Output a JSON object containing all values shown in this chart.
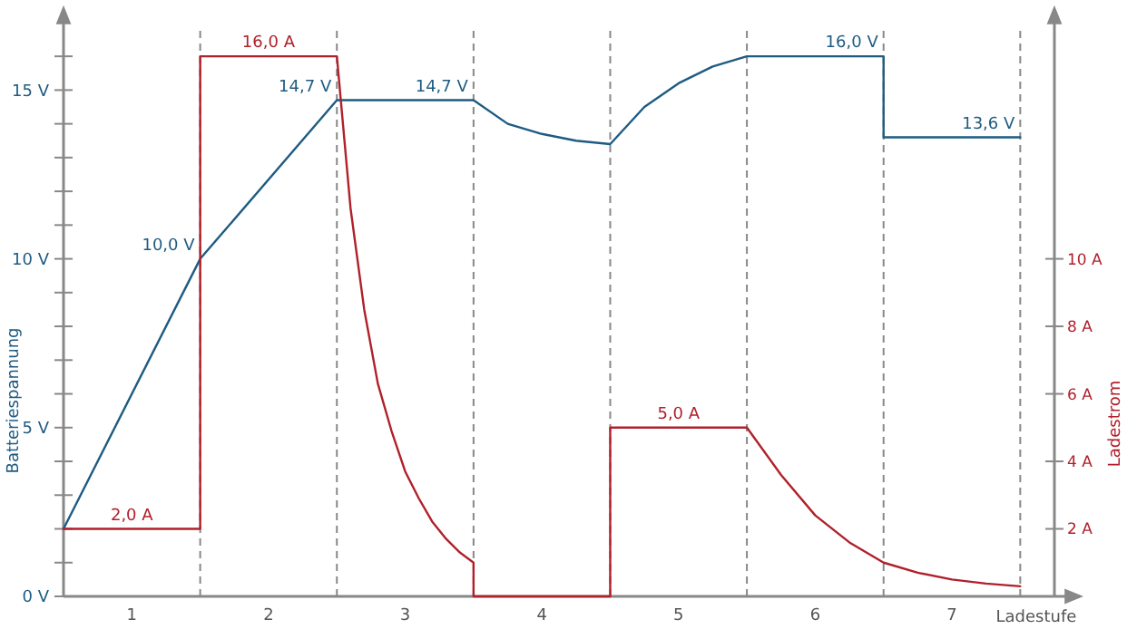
{
  "chart_data": {
    "type": "line",
    "xlabel": "Ladestufe",
    "ylabel": "Batteriespannung",
    "y2label": "Ladestrom",
    "xlim": [
      0,
      7.25
    ],
    "xticks": [
      {
        "value": 0.5,
        "label": "1"
      },
      {
        "value": 1.5,
        "label": "2"
      },
      {
        "value": 2.5,
        "label": "3"
      },
      {
        "value": 3.5,
        "label": "4"
      },
      {
        "value": 4.5,
        "label": "5"
      },
      {
        "value": 5.5,
        "label": "6"
      },
      {
        "value": 6.5,
        "label": "7"
      }
    ],
    "ylim": [
      0,
      17.4
    ],
    "yticks": [
      {
        "value": 0,
        "label": "0 V"
      },
      {
        "value": 1,
        "label": null
      },
      {
        "value": 2,
        "label": null
      },
      {
        "value": 3,
        "label": null
      },
      {
        "value": 4,
        "label": null
      },
      {
        "value": 5,
        "label": "5 V"
      },
      {
        "value": 6,
        "label": null
      },
      {
        "value": 7,
        "label": null
      },
      {
        "value": 8,
        "label": null
      },
      {
        "value": 9,
        "label": null
      },
      {
        "value": 10,
        "label": "10 V"
      },
      {
        "value": 11,
        "label": null
      },
      {
        "value": 12,
        "label": null
      },
      {
        "value": 13,
        "label": null
      },
      {
        "value": 14,
        "label": null
      },
      {
        "value": 15,
        "label": "15 V"
      },
      {
        "value": 16,
        "label": null
      }
    ],
    "y2lim": [
      0,
      17.4
    ],
    "y2ticks": [
      {
        "value": 2,
        "label": "2 A"
      },
      {
        "value": 4,
        "label": "4 A"
      },
      {
        "value": 6,
        "label": "6 A"
      },
      {
        "value": 8,
        "label": "8 A"
      },
      {
        "value": 10,
        "label": "10 A"
      }
    ],
    "grid": false,
    "marker": "none",
    "line_style": "solid",
    "series": [
      {
        "color": "#1e5b82",
        "x": [
          0,
          1,
          2,
          3,
          3.25,
          3.5,
          3.75,
          4,
          4.25,
          4.5,
          4.75,
          5,
          6,
          6,
          7
        ],
        "values": [
          2,
          10,
          14.7,
          14.7,
          14.0,
          13.7,
          13.5,
          13.4,
          14.5,
          15.2,
          15.7,
          16,
          16,
          13.6,
          13.6
        ]
      },
      {
        "color": "#b0202a",
        "axis": "y2",
        "x": [
          0,
          1,
          1,
          2,
          2,
          2.1,
          2.2,
          2.3,
          2.4,
          2.5,
          2.6,
          2.7,
          2.8,
          2.9,
          3,
          3,
          4,
          4,
          5,
          5.25,
          5.5,
          5.75,
          6,
          6.25,
          6.5,
          6.75,
          7
        ],
        "values": [
          2,
          2,
          16,
          16,
          16,
          11.5,
          8.5,
          6.3,
          4.9,
          3.7,
          2.9,
          2.2,
          1.7,
          1.3,
          1.0,
          0,
          0,
          5,
          5,
          3.6,
          2.4,
          1.6,
          1.0,
          0.7,
          0.5,
          0.38,
          0.3
        ]
      }
    ],
    "ref_lines": [
      {
        "axis": "x",
        "value": 1,
        "line_style": "dashed",
        "color": "#888888"
      },
      {
        "axis": "x",
        "value": 2,
        "line_style": "dashed",
        "color": "#888888"
      },
      {
        "axis": "x",
        "value": 3,
        "line_style": "dashed",
        "color": "#888888"
      },
      {
        "axis": "x",
        "value": 4,
        "line_style": "dashed",
        "color": "#888888"
      },
      {
        "axis": "x",
        "value": 5,
        "line_style": "dashed",
        "color": "#888888"
      },
      {
        "axis": "x",
        "value": 6,
        "line_style": "dashed",
        "color": "#888888"
      },
      {
        "axis": "x",
        "value": 7,
        "line_style": "dashed",
        "color": "#888888"
      }
    ],
    "annotations": [
      {
        "text": "2,0 A",
        "x": 0.5,
        "y": 2
      },
      {
        "text": "10,0 V",
        "x": 1,
        "y": 10
      },
      {
        "text": "16,0 A",
        "x": 1.5,
        "y": 16
      },
      {
        "text": "14,7 V",
        "x": 2,
        "y": 14.7
      },
      {
        "text": "14,7 V",
        "x": 3,
        "y": 14.7
      },
      {
        "text": "5,0 A",
        "x": 4.5,
        "y": 5
      },
      {
        "text": "16,0 V",
        "x": 6,
        "y": 16
      },
      {
        "text": "13,6 V",
        "x": 7,
        "y": 13.6
      }
    ]
  }
}
